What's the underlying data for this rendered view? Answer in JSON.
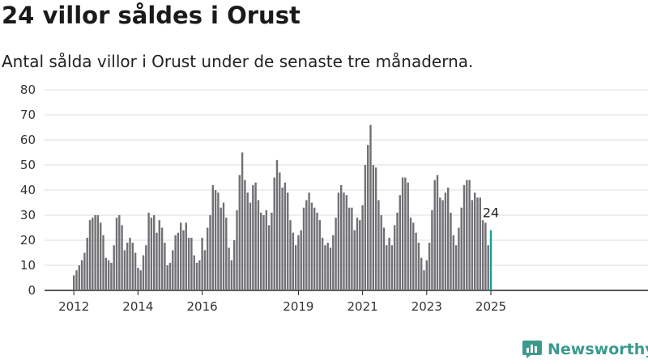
{
  "title": "24 villor såldes i Orust",
  "subtitle": "Antal sålda villor i Orust under de senaste tre månaderna.",
  "logo_text": "Newsworthy",
  "colors": {
    "bar": "#717175",
    "highlight": "#16a08f",
    "grid": "#dddddd",
    "logo": "#3a9a8e"
  },
  "chart_data": {
    "type": "bar",
    "title": "24 villor såldes i Orust",
    "subtitle": "Antal sålda villor i Orust under de senaste tre månaderna.",
    "xlabel": "",
    "ylabel": "",
    "ylim": [
      0,
      80
    ],
    "yticks": [
      0,
      10,
      20,
      30,
      40,
      50,
      60,
      70,
      80
    ],
    "grid": true,
    "start_month": "2012-01",
    "end_month": "2025-02",
    "x_tick_labels": [
      {
        "label": "2012",
        "month": "2012-01"
      },
      {
        "label": "2014",
        "month": "2014-01"
      },
      {
        "label": "2016",
        "month": "2016-01"
      },
      {
        "label": "2019",
        "month": "2019-01"
      },
      {
        "label": "2021",
        "month": "2021-01"
      },
      {
        "label": "2023",
        "month": "2023-01"
      },
      {
        "label": "2025",
        "month": "2025-01"
      }
    ],
    "values": [
      6,
      8,
      10,
      12,
      15,
      21,
      28,
      29,
      30,
      30,
      27,
      22,
      13,
      12,
      11,
      18,
      29,
      30,
      26,
      16,
      19,
      21,
      19,
      15,
      9,
      8,
      14,
      18,
      31,
      29,
      30,
      23,
      28,
      25,
      19,
      10,
      11,
      16,
      22,
      23,
      27,
      24,
      27,
      21,
      21,
      14,
      11,
      12,
      21,
      16,
      25,
      30,
      42,
      40,
      39,
      33,
      35,
      29,
      17,
      12,
      20,
      32,
      46,
      55,
      44,
      39,
      35,
      42,
      43,
      36,
      31,
      30,
      32,
      26,
      31,
      45,
      52,
      47,
      41,
      43,
      39,
      28,
      23,
      18,
      22,
      24,
      33,
      36,
      39,
      35,
      33,
      31,
      28,
      21,
      18,
      19,
      17,
      22,
      29,
      39,
      42,
      39,
      38,
      33,
      33,
      24,
      29,
      28,
      34,
      50,
      58,
      66,
      50,
      49,
      36,
      30,
      25,
      18,
      21,
      18,
      26,
      31,
      38,
      45,
      45,
      43,
      29,
      27,
      23,
      19,
      13,
      8,
      12,
      19,
      32,
      44,
      46,
      37,
      36,
      39,
      41,
      31,
      22,
      18,
      25,
      33,
      42,
      44,
      44,
      36,
      39,
      37,
      37,
      28,
      27,
      18,
      24
    ],
    "highlight_last": true,
    "annotations": [
      {
        "text": "24"
      }
    ]
  }
}
